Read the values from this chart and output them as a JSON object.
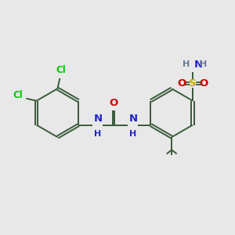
{
  "background_color": "#e8e8e8",
  "bond_color": "#3a5a3a",
  "cl_color": "#00cc00",
  "n_color": "#2222cc",
  "o_color": "#cc0000",
  "s_color": "#ccaa00",
  "h_color": "#667799",
  "figsize": [
    3.0,
    3.0
  ],
  "dpi": 100,
  "xlim": [
    0,
    10
  ],
  "ylim": [
    0,
    10
  ]
}
